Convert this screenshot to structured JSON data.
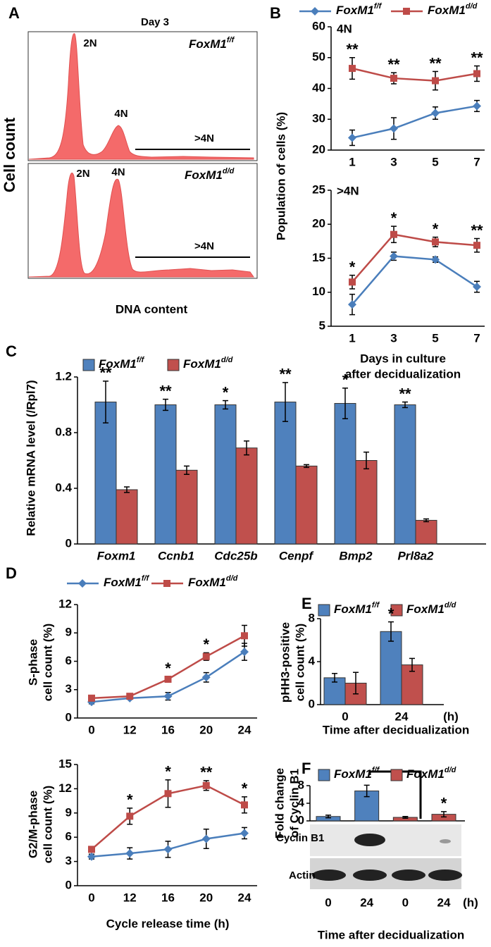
{
  "chart_data": [
    {
      "type": "flow",
      "label": "A",
      "title": "Day 3",
      "y_label": "Cell count",
      "x_label": "DNA content",
      "plots": [
        {
          "genotype": "FoxM1",
          "sup": "f/f",
          "peaks": [
            "2N",
            "4N"
          ],
          "gate": ">4N"
        },
        {
          "genotype": "FoxM1",
          "sup": "d/d",
          "peaks": [
            "2N",
            "4N"
          ],
          "gate": ">4N"
        }
      ]
    },
    {
      "type": "line",
      "label": "B",
      "subtitle": "4N",
      "y_label": "Population of cells (%)",
      "categories": [
        "1",
        "3",
        "5",
        "7"
      ],
      "ylim": [
        20,
        60
      ],
      "yticks": [
        20,
        30,
        40,
        50,
        60
      ],
      "series": [
        {
          "name": "FoxM1",
          "sup": "f/f",
          "color": "#4a7ebb",
          "marker": "diamond",
          "values": [
            24,
            27,
            32,
            34.3
          ],
          "errors": [
            2.5,
            3.5,
            2,
            1.8
          ]
        },
        {
          "name": "FoxM1",
          "sup": "d/d",
          "color": "#be4b48",
          "marker": "square",
          "values": [
            46.5,
            43.3,
            42.5,
            44.8
          ],
          "errors": [
            3.5,
            1.8,
            3,
            2.5
          ]
        }
      ],
      "annotations": [
        "**",
        "**",
        "**",
        "**"
      ]
    },
    {
      "type": "line",
      "subtitle": ">4N",
      "x_label": [
        "Days in culture",
        "after decidualization"
      ],
      "categories": [
        "1",
        "3",
        "5",
        "7"
      ],
      "ylim": [
        5,
        25
      ],
      "yticks": [
        5,
        10,
        15,
        20,
        25
      ],
      "series": [
        {
          "color": "#4a7ebb",
          "marker": "diamond",
          "values": [
            8.2,
            15.3,
            14.8,
            10.8
          ],
          "errors": [
            1.5,
            0.6,
            0.4,
            0.8
          ]
        },
        {
          "color": "#be4b48",
          "marker": "square",
          "values": [
            11.5,
            18.5,
            17.4,
            16.9
          ],
          "errors": [
            1,
            1.2,
            0.7,
            1
          ]
        }
      ],
      "annotations": [
        "*",
        "*",
        "*",
        "**"
      ]
    },
    {
      "type": "bar",
      "label": "C",
      "y_label": "Relative mRNA level (/Rpl7)",
      "categories": [
        "Foxm1",
        "Ccnb1",
        "Cdc25b",
        "Cenpf",
        "Bmp2",
        "Prl8a2"
      ],
      "ylim": [
        0,
        1.2
      ],
      "yticks": [
        0,
        0.4,
        0.8,
        1.2
      ],
      "series": [
        {
          "name": "FoxM1",
          "sup": "f/f",
          "color": "#4f81bd",
          "values": [
            1.02,
            1.0,
            1.0,
            1.02,
            1.01,
            1.0
          ],
          "errors": [
            0.15,
            0.04,
            0.03,
            0.14,
            0.11,
            0.02
          ]
        },
        {
          "name": "FoxM1",
          "sup": "d/d",
          "color": "#c0504d",
          "values": [
            0.39,
            0.53,
            0.69,
            0.56,
            0.6,
            0.17
          ],
          "errors": [
            0.02,
            0.03,
            0.05,
            0.01,
            0.06,
            0.01
          ]
        }
      ],
      "annotations": [
        "**",
        "**",
        "*",
        "**",
        "*",
        "**"
      ]
    },
    {
      "type": "line",
      "label": "D",
      "y_label": [
        "S-phase",
        "cell count (%)"
      ],
      "categories": [
        "0",
        "12",
        "16",
        "20",
        "24"
      ],
      "ylim": [
        0,
        12
      ],
      "yticks": [
        0,
        3,
        6,
        9,
        12
      ],
      "series": [
        {
          "name": "FoxM1",
          "sup": "f/f",
          "color": "#4a7ebb",
          "marker": "diamond",
          "values": [
            1.7,
            2.1,
            2.3,
            4.3,
            7.0
          ],
          "errors": [
            0.2,
            0.1,
            0.4,
            0.5,
            0.9
          ]
        },
        {
          "name": "FoxM1",
          "sup": "d/d",
          "color": "#be4b48",
          "marker": "square",
          "values": [
            2.1,
            2.3,
            4.1,
            6.5,
            8.7
          ],
          "errors": [
            0.3,
            0.1,
            0.3,
            0.4,
            1.1
          ]
        }
      ],
      "annotations": [
        null,
        null,
        "*",
        "*",
        null
      ]
    },
    {
      "type": "line",
      "y_label": [
        "G2/M-phase",
        "cell count (%)"
      ],
      "x_label": "Cycle release time (h)",
      "categories": [
        "0",
        "12",
        "16",
        "20",
        "24"
      ],
      "ylim": [
        0,
        15
      ],
      "yticks": [
        0,
        3,
        6,
        9,
        12,
        15
      ],
      "series": [
        {
          "color": "#4a7ebb",
          "marker": "diamond",
          "values": [
            3.6,
            4.0,
            4.5,
            5.8,
            6.5
          ],
          "errors": [
            0.3,
            0.7,
            1,
            1.2,
            0.7
          ]
        },
        {
          "color": "#be4b48",
          "marker": "square",
          "values": [
            4.5,
            8.6,
            11.4,
            12.4,
            10.0
          ],
          "errors": [
            0.2,
            1,
            1.7,
            0.6,
            1
          ]
        }
      ],
      "annotations": [
        null,
        "*",
        "*",
        "**",
        "*"
      ]
    },
    {
      "type": "bar",
      "label": "E",
      "y_label": [
        "pHH3-positive",
        "cell count (%)"
      ],
      "x_label": "Time after decidualization",
      "x_unit": "(h)",
      "categories": [
        "0",
        "24"
      ],
      "ylim": [
        0,
        8
      ],
      "yticks": [
        0,
        4,
        8
      ],
      "series": [
        {
          "name": "FoxM1",
          "sup": "f/f",
          "color": "#4f81bd",
          "values": [
            2.5,
            6.8
          ],
          "errors": [
            0.4,
            0.9
          ]
        },
        {
          "name": "FoxM1",
          "sup": "d/d",
          "color": "#c0504d",
          "values": [
            2.0,
            3.7
          ],
          "errors": [
            1,
            0.6
          ]
        }
      ],
      "annotations": [
        null,
        "*"
      ]
    },
    {
      "type": "bar",
      "label": "F",
      "y_label": [
        "Fold change",
        "of Cyclin B1"
      ],
      "x_label": "Time after decidualization",
      "x_unit": "(h)",
      "categories": [
        "0",
        "24",
        "0",
        "24"
      ],
      "ylim": [
        0,
        8
      ],
      "yticks": [
        0,
        4,
        8
      ],
      "series": [
        {
          "name": "FoxM1",
          "sup": "f/f",
          "color": "#4f81bd",
          "values": [
            1.0,
            6.8,
            null,
            null
          ],
          "errors": [
            0.3,
            1.3,
            null,
            null
          ]
        },
        {
          "name": "FoxM1",
          "sup": "d/d",
          "color": "#c0504d",
          "values": [
            null,
            null,
            0.8,
            1.5
          ],
          "errors": [
            null,
            null,
            0.2,
            0.6
          ]
        }
      ],
      "annotations": [
        null,
        null,
        null,
        "*"
      ],
      "blot_labels": [
        "Cyclin B1",
        "Actin"
      ]
    }
  ]
}
